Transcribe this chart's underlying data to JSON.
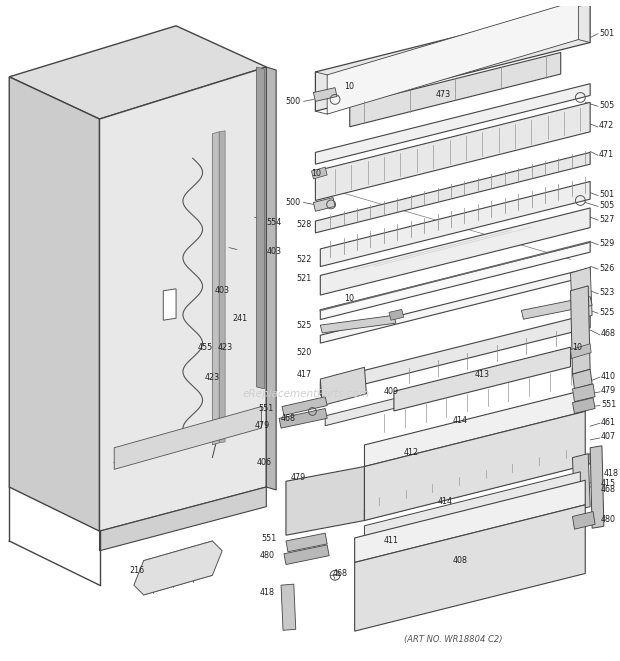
{
  "bg_color": "#ffffff",
  "line_color": "#444444",
  "text_color": "#222222",
  "art_no": "(ART NO. WR18804 C2)",
  "watermark": "eReplacementParts.com",
  "fig_width": 6.2,
  "fig_height": 6.61,
  "dpi": 100
}
